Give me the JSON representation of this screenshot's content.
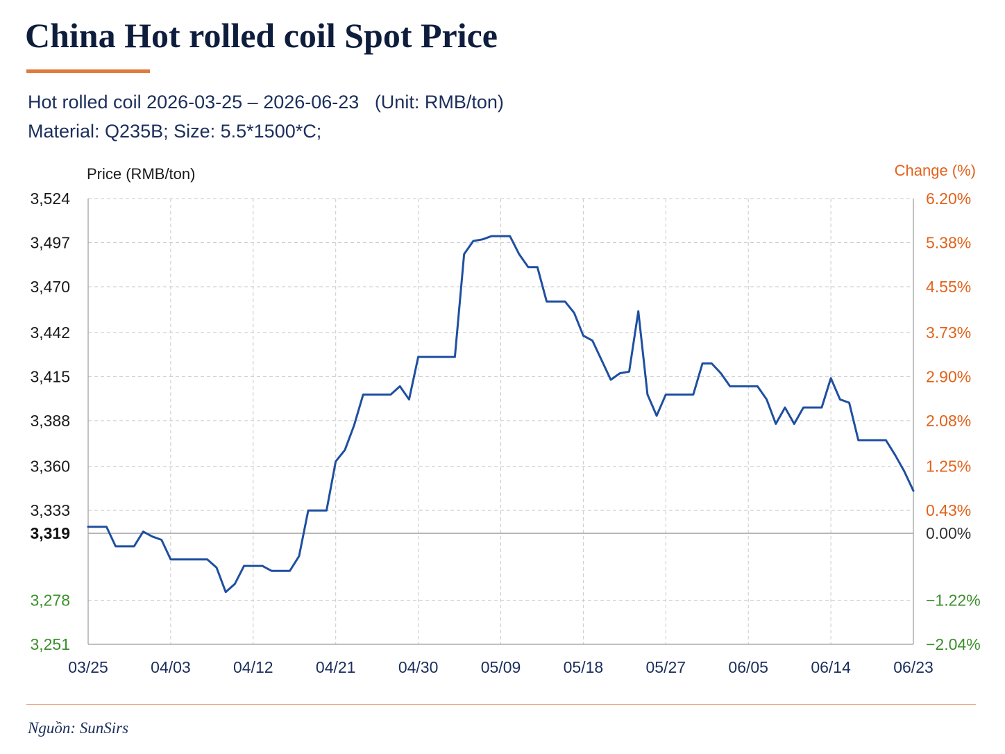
{
  "header": {
    "title": "China Hot rolled coil Spot Price",
    "subtitle_line1": "Hot rolled coil 2026-03-25 – 2026-06-23   (Unit: RMB/ton)",
    "subtitle_line2": "Material: Q235B; Size: 5.5*1500*C;"
  },
  "footer": {
    "source": "Nguồn: SunSirs"
  },
  "colors": {
    "line": "#1f4fa0",
    "up": "#e2621b",
    "down": "#3a8f2a",
    "neutral": "#333333",
    "axis_text": "#1b2e5c",
    "accent": "#e07a3c"
  },
  "chart_data": {
    "type": "line",
    "title": "China Hot rolled coil Spot Price",
    "ylabel": "Price (RMB/ton)",
    "ylabel_right": "Change (%)",
    "baseline": 3319,
    "baseline_label": "3,319",
    "baseline_pct_label": "0.00%",
    "ylim": [
      3251,
      3524
    ],
    "xlim": [
      "2026-03-25",
      "2026-06-23"
    ],
    "grid": true,
    "y_ticks": [
      {
        "value": 3524,
        "label": "3,524",
        "pct": "6.20%"
      },
      {
        "value": 3497,
        "label": "3,497",
        "pct": "5.38%"
      },
      {
        "value": 3470,
        "label": "3,470",
        "pct": "4.55%"
      },
      {
        "value": 3442,
        "label": "3,442",
        "pct": "3.73%"
      },
      {
        "value": 3415,
        "label": "3,415",
        "pct": "2.90%"
      },
      {
        "value": 3388,
        "label": "3,388",
        "pct": "2.08%"
      },
      {
        "value": 3360,
        "label": "3,360",
        "pct": "1.25%"
      },
      {
        "value": 3333,
        "label": "3,333",
        "pct": "0.43%"
      },
      {
        "value": 3278,
        "label": "3,278",
        "pct": "−1.22%"
      },
      {
        "value": 3251,
        "label": "3,251",
        "pct": "−2.04%"
      }
    ],
    "x_ticks": [
      {
        "date": "2026-03-25",
        "label": "03/25"
      },
      {
        "date": "2026-04-03",
        "label": "04/03"
      },
      {
        "date": "2026-04-12",
        "label": "04/12"
      },
      {
        "date": "2026-04-21",
        "label": "04/21"
      },
      {
        "date": "2026-04-30",
        "label": "04/30"
      },
      {
        "date": "2026-05-09",
        "label": "05/09"
      },
      {
        "date": "2026-05-18",
        "label": "05/18"
      },
      {
        "date": "2026-05-27",
        "label": "05/27"
      },
      {
        "date": "2026-06-05",
        "label": "06/05"
      },
      {
        "date": "2026-06-14",
        "label": "06/14"
      },
      {
        "date": "2026-06-23",
        "label": "06/23"
      }
    ],
    "series": [
      {
        "x": [
          "2026-03-25",
          "2026-03-26",
          "2026-03-27",
          "2026-03-28",
          "2026-03-29",
          "2026-03-30",
          "2026-03-31",
          "2026-04-01",
          "2026-04-02",
          "2026-04-03",
          "2026-04-04",
          "2026-04-05",
          "2026-04-06",
          "2026-04-07",
          "2026-04-08",
          "2026-04-09",
          "2026-04-10",
          "2026-04-11",
          "2026-04-12",
          "2026-04-13",
          "2026-04-14",
          "2026-04-15",
          "2026-04-16",
          "2026-04-17",
          "2026-04-18",
          "2026-04-19",
          "2026-04-20",
          "2026-04-21",
          "2026-04-22",
          "2026-04-23",
          "2026-04-24",
          "2026-04-25",
          "2026-04-26",
          "2026-04-27",
          "2026-04-28",
          "2026-04-29",
          "2026-04-30",
          "2026-05-01",
          "2026-05-02",
          "2026-05-03",
          "2026-05-04",
          "2026-05-05",
          "2026-05-06",
          "2026-05-07",
          "2026-05-08",
          "2026-05-09",
          "2026-05-10",
          "2026-05-11",
          "2026-05-12",
          "2026-05-13",
          "2026-05-14",
          "2026-05-15",
          "2026-05-16",
          "2026-05-17",
          "2026-05-18",
          "2026-05-19",
          "2026-05-20",
          "2026-05-21",
          "2026-05-22",
          "2026-05-23",
          "2026-05-24",
          "2026-05-25",
          "2026-05-26",
          "2026-05-27",
          "2026-05-28",
          "2026-05-29",
          "2026-05-30",
          "2026-05-31",
          "2026-06-01",
          "2026-06-02",
          "2026-06-03",
          "2026-06-04",
          "2026-06-05",
          "2026-06-06",
          "2026-06-07",
          "2026-06-08",
          "2026-06-09",
          "2026-06-10",
          "2026-06-11",
          "2026-06-12",
          "2026-06-13",
          "2026-06-14",
          "2026-06-15",
          "2026-06-16",
          "2026-06-17",
          "2026-06-18",
          "2026-06-19",
          "2026-06-20",
          "2026-06-21",
          "2026-06-22",
          "2026-06-23"
        ],
        "values": [
          3323,
          3323,
          3323,
          3311,
          3311,
          3311,
          3320,
          3317,
          3315,
          3303,
          3303,
          3303,
          3303,
          3303,
          3298,
          3283,
          3288,
          3299,
          3299,
          3299,
          3296,
          3296,
          3296,
          3305,
          3333,
          3333,
          3333,
          3363,
          3370,
          3385,
          3404,
          3404,
          3404,
          3404,
          3409,
          3401,
          3427,
          3427,
          3427,
          3427,
          3427,
          3490,
          3498,
          3499,
          3501,
          3501,
          3501,
          3490,
          3482,
          3482,
          3461,
          3461,
          3461,
          3454,
          3440,
          3437,
          3425,
          3413,
          3417,
          3418,
          3455,
          3404,
          3391,
          3404,
          3404,
          3404,
          3404,
          3423,
          3423,
          3417,
          3409,
          3409,
          3409,
          3409,
          3401,
          3386,
          3396,
          3386,
          3396,
          3396,
          3396,
          3414,
          3401,
          3399,
          3376,
          3376,
          3376,
          3376,
          3367,
          3357,
          3345
        ]
      }
    ]
  }
}
